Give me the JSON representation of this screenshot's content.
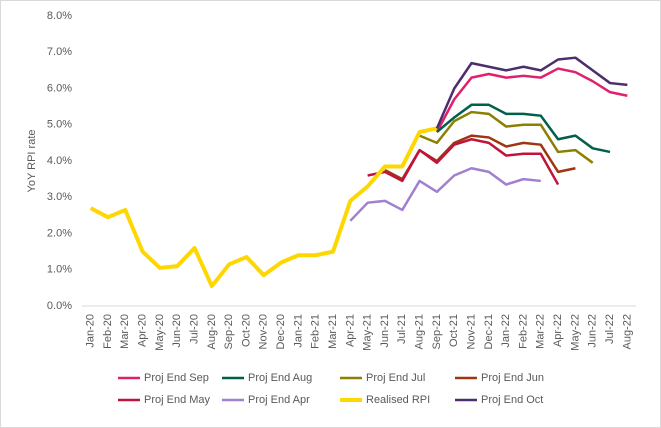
{
  "chart_data": {
    "type": "line",
    "y_label": "YoY RPI rate",
    "categories": [
      "Jan-20",
      "Feb-20",
      "Mar-20",
      "Apr-20",
      "May-20",
      "Jun-20",
      "Jul-20",
      "Aug-20",
      "Sep-20",
      "Oct-20",
      "Nov-20",
      "Dec-20",
      "Jan-21",
      "Feb-21",
      "Mar-21",
      "Apr-21",
      "May-21",
      "Jun-21",
      "Jul-21",
      "Aug-21",
      "Sep-21",
      "Oct-21",
      "Nov-21",
      "Dec-21",
      "Jan-22",
      "Feb-22",
      "Mar-22",
      "Apr-22",
      "May-22",
      "Jun-22",
      "Jul-22",
      "Aug-22"
    ],
    "ylim": [
      0,
      8
    ],
    "yticks": [
      {
        "value": 0,
        "label": "0.0%"
      },
      {
        "value": 1,
        "label": "1.0%"
      },
      {
        "value": 2,
        "label": "2.0%"
      },
      {
        "value": 3,
        "label": "3.0%"
      },
      {
        "value": 4,
        "label": "4.0%"
      },
      {
        "value": 5,
        "label": "5.0%"
      },
      {
        "value": 6,
        "label": "6.0%"
      },
      {
        "value": 7,
        "label": "7.0%"
      },
      {
        "value": 8,
        "label": "8.0%"
      }
    ],
    "grid": false,
    "legend": "bottom",
    "series": [
      {
        "name": "Proj End Sep",
        "color": "#e0206a",
        "values": [
          null,
          null,
          null,
          null,
          null,
          null,
          null,
          null,
          null,
          null,
          null,
          null,
          null,
          null,
          null,
          null,
          null,
          null,
          null,
          null,
          4.8,
          5.7,
          6.3,
          6.4,
          6.3,
          6.35,
          6.3,
          6.55,
          6.45,
          6.2,
          5.9,
          5.8
        ]
      },
      {
        "name": "Proj End Aug",
        "color": "#00604a",
        "values": [
          null,
          null,
          null,
          null,
          null,
          null,
          null,
          null,
          null,
          null,
          null,
          null,
          null,
          null,
          null,
          null,
          null,
          null,
          null,
          null,
          4.8,
          5.2,
          5.55,
          5.55,
          5.3,
          5.3,
          5.25,
          4.6,
          4.7,
          4.35,
          4.25,
          null
        ]
      },
      {
        "name": "Proj End Jul",
        "color": "#8b8000",
        "values": [
          null,
          null,
          null,
          null,
          null,
          null,
          null,
          null,
          null,
          null,
          null,
          null,
          null,
          null,
          null,
          null,
          null,
          null,
          null,
          4.7,
          4.5,
          5.1,
          5.35,
          5.3,
          4.95,
          5.0,
          5.0,
          4.25,
          4.3,
          3.95,
          null,
          null
        ]
      },
      {
        "name": "Proj End Jun",
        "color": "#a0360e",
        "values": [
          null,
          null,
          null,
          null,
          null,
          null,
          null,
          null,
          null,
          null,
          null,
          null,
          null,
          null,
          null,
          null,
          null,
          3.75,
          3.5,
          4.3,
          4.0,
          4.5,
          4.7,
          4.65,
          4.4,
          4.5,
          4.45,
          3.7,
          3.8,
          null,
          null,
          null
        ]
      },
      {
        "name": "Proj End May",
        "color": "#c0143c",
        "values": [
          null,
          null,
          null,
          null,
          null,
          null,
          null,
          null,
          null,
          null,
          null,
          null,
          null,
          null,
          null,
          null,
          3.6,
          3.7,
          3.45,
          4.3,
          3.95,
          4.45,
          4.6,
          4.5,
          4.15,
          4.2,
          4.2,
          3.35,
          null,
          null,
          null,
          null
        ]
      },
      {
        "name": "Proj End Apr",
        "color": "#a080d0",
        "values": [
          null,
          null,
          null,
          null,
          null,
          null,
          null,
          null,
          null,
          null,
          null,
          null,
          null,
          null,
          null,
          2.35,
          2.85,
          2.9,
          2.65,
          3.45,
          3.15,
          3.6,
          3.8,
          3.7,
          3.35,
          3.5,
          3.45,
          null,
          null,
          null,
          null,
          null
        ]
      },
      {
        "name": "Realised RPI",
        "color": "#ffd700",
        "values": [
          2.7,
          2.45,
          2.65,
          1.5,
          1.05,
          1.1,
          1.6,
          0.55,
          1.15,
          1.35,
          0.85,
          1.2,
          1.4,
          1.4,
          1.5,
          2.9,
          3.3,
          3.85,
          3.85,
          4.8,
          4.9,
          null,
          null,
          null,
          null,
          null,
          null,
          null,
          null,
          null,
          null,
          null
        ]
      },
      {
        "name": "Proj End Oct",
        "color": "#4b2e6e",
        "values": [
          null,
          null,
          null,
          null,
          null,
          null,
          null,
          null,
          null,
          null,
          null,
          null,
          null,
          null,
          null,
          null,
          null,
          null,
          null,
          null,
          4.9,
          6.0,
          6.7,
          6.6,
          6.5,
          6.6,
          6.5,
          6.8,
          6.85,
          6.5,
          6.15,
          6.1
        ]
      }
    ]
  }
}
